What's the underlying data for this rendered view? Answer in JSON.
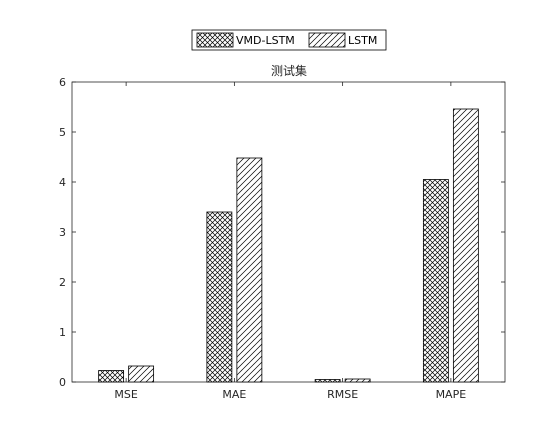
{
  "chart_data": {
    "type": "bar",
    "title": "测试集",
    "categories": [
      "MSE",
      "MAE",
      "RMSE",
      "MAPE"
    ],
    "series": [
      {
        "name": "VMD-LSTM",
        "pattern": "crosshatch",
        "values": [
          0.23,
          3.4,
          0.05,
          4.05
        ]
      },
      {
        "name": "LSTM",
        "pattern": "diagonal",
        "values": [
          0.32,
          4.48,
          0.06,
          5.46
        ]
      }
    ],
    "xlabel": "",
    "ylabel": "",
    "ylim": [
      0,
      6
    ],
    "yticks": [
      "0",
      "1",
      "2",
      "3",
      "4",
      "5",
      "6"
    ],
    "grid": false,
    "legend_position": "top-center",
    "colors": {
      "bar_edge": "#000000",
      "hatch": "#000000",
      "axis": "#262626",
      "background": "#ffffff"
    }
  }
}
